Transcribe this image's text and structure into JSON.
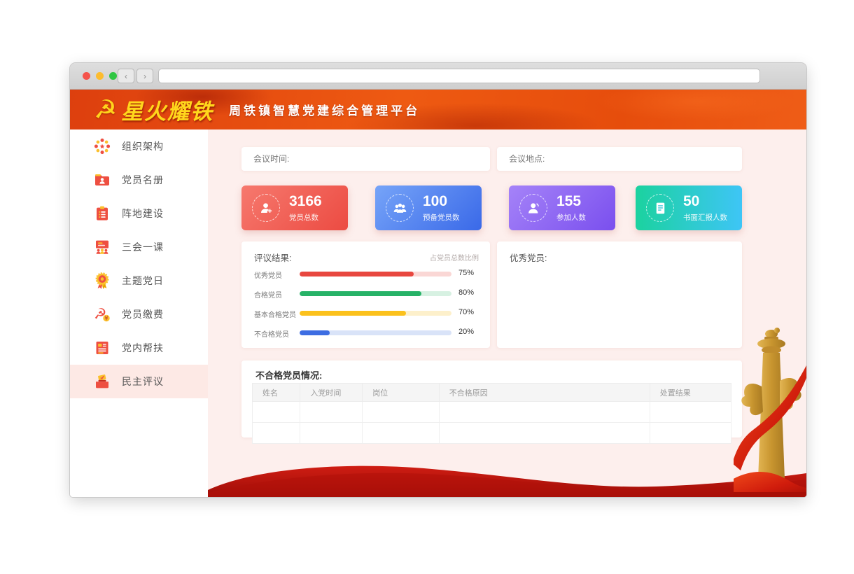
{
  "browser": {
    "back_label": "‹",
    "forward_label": "›"
  },
  "header": {
    "logo_text": "星火耀铁",
    "subtitle": "周铁镇智慧党建综合管理平台",
    "banner_color": "#ea530f",
    "logo_color": "#ffd71c"
  },
  "sidebar": {
    "items": [
      {
        "label": "组织架构",
        "icon": "org-structure-icon",
        "active": false
      },
      {
        "label": "党员名册",
        "icon": "member-roster-icon",
        "active": false
      },
      {
        "label": "阵地建设",
        "icon": "position-building-icon",
        "active": false
      },
      {
        "label": "三会一课",
        "icon": "three-meetings-icon",
        "active": false
      },
      {
        "label": "主题党日",
        "icon": "theme-party-day-icon",
        "active": false
      },
      {
        "label": "党员缴费",
        "icon": "member-dues-icon",
        "active": false
      },
      {
        "label": "党内帮扶",
        "icon": "party-assistance-icon",
        "active": false
      },
      {
        "label": "民主评议",
        "icon": "democratic-review-icon",
        "active": true
      }
    ],
    "active_bg": "#fde9e5"
  },
  "meeting": {
    "time_label": "会议时间:",
    "place_label": "会议地点:"
  },
  "stats": [
    {
      "value": "3166",
      "label": "党员总数",
      "icon": "user-plus-icon",
      "color_from": "#f6796e",
      "color_to": "#ec4b42",
      "direction": "135deg"
    },
    {
      "value": "100",
      "label": "预备党员数",
      "icon": "users-group-icon",
      "color_from": "#76a4f8",
      "color_to": "#3a69e8",
      "direction": "135deg"
    },
    {
      "value": "155",
      "label": "参加人数",
      "icon": "user-speaker-icon",
      "color_from": "#a583f8",
      "color_to": "#7a4fee",
      "direction": "135deg"
    },
    {
      "value": "50",
      "label": "书面汇报人数",
      "icon": "report-doc-icon",
      "color_from": "#1bd29f",
      "color_to": "#3ec5f6",
      "direction": "90deg"
    }
  ],
  "review": {
    "title": "评议结果:",
    "note": "占党员总数比例",
    "bars": [
      {
        "label": "优秀党员",
        "value": 75,
        "percent": "75%",
        "color": "#e8473f",
        "track": "#fad7d5"
      },
      {
        "label": "合格党员",
        "value": 80,
        "percent": "80%",
        "color": "#27b267",
        "track": "#d7f1e2"
      },
      {
        "label": "基本合格党员",
        "value": 70,
        "percent": "70%",
        "color": "#fbc11c",
        "track": "#fdf0cb"
      },
      {
        "label": "不合格党员",
        "value": 20,
        "percent": "20%",
        "color": "#3d6de2",
        "track": "#d9e3f8"
      }
    ]
  },
  "excellent": {
    "title": "优秀党员:"
  },
  "unqualified": {
    "title": "不合格党员情况:",
    "columns": [
      "姓名",
      "入党时间",
      "岗位",
      "不合格原因",
      "处置结果"
    ],
    "rows": [
      [
        "",
        "",
        "",
        "",
        ""
      ],
      [
        "",
        "",
        "",
        "",
        ""
      ]
    ]
  }
}
